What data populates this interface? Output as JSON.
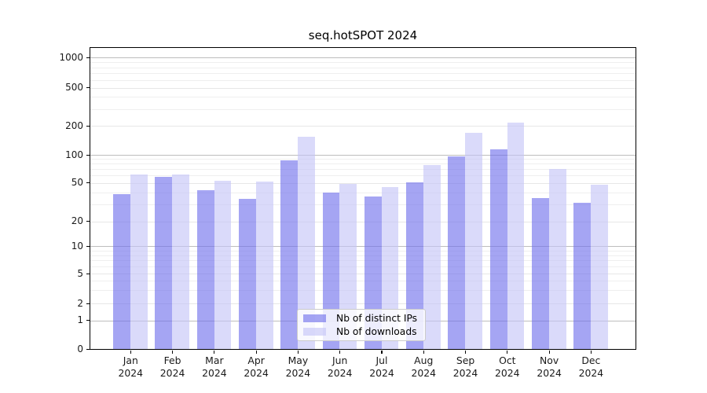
{
  "title": "seq.hotSPOT 2024",
  "chart_data": {
    "type": "bar",
    "title": "seq.hotSPOT 2024",
    "categories": [
      "Jan 2024",
      "Feb 2024",
      "Mar 2024",
      "Apr 2024",
      "May 2024",
      "Jun 2024",
      "Jul 2024",
      "Aug 2024",
      "Sep 2024",
      "Oct 2024",
      "Nov 2024",
      "Dec 2024"
    ],
    "series": [
      {
        "name": "Nb of distinct IPs",
        "color": "#a5a5f2",
        "base_color": "#6e6eeb",
        "alpha": 0.62,
        "values": [
          38,
          58,
          42,
          34,
          87,
          40,
          36,
          51,
          96,
          113,
          35,
          31
        ]
      },
      {
        "name": "Nb of downloads",
        "color": "#dadaf9",
        "base_color": "#c3c3f7",
        "alpha": 0.62,
        "values": [
          61,
          61,
          53,
          52,
          155,
          49,
          45,
          78,
          170,
          215,
          71,
          48
        ]
      }
    ],
    "xlabel": "",
    "ylabel": "",
    "yscale": "symlog-like",
    "yticks": [
      0,
      1,
      2,
      5,
      10,
      20,
      50,
      100,
      200,
      500,
      1000
    ],
    "ylim": [
      0,
      1300
    ],
    "grid": true,
    "legend_position": "lower center"
  },
  "legend": {
    "items": [
      "Nb of distinct IPs",
      "Nb of downloads"
    ]
  }
}
